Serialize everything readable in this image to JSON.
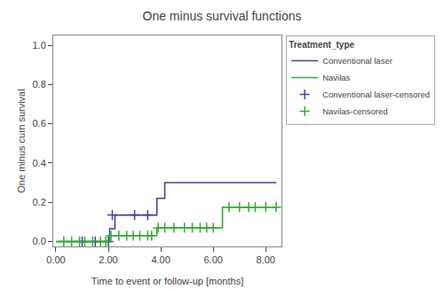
{
  "chart_data": {
    "type": "line",
    "title": "One minus survival functions",
    "xlabel": "Time to event or follow-up [months]",
    "ylabel": "One minus cum survival",
    "legend_title": "Treatment_type",
    "legend": "right",
    "grid": false,
    "xlim": [
      -0.1,
      8.6
    ],
    "ylim": [
      -0.025,
      1.05
    ],
    "xticks": [
      {
        "value": 0.0,
        "label": "0.00"
      },
      {
        "value": 2.0,
        "label": "2.00"
      },
      {
        "value": 4.0,
        "label": "4.00"
      },
      {
        "value": 6.0,
        "label": "6.00"
      },
      {
        "value": 8.0,
        "label": "8.00"
      }
    ],
    "yticks": [
      {
        "value": 0.0,
        "label": "0.0"
      },
      0.2,
      0.4,
      0.6,
      0.8,
      {
        "value": 1.0,
        "label": "1.0"
      }
    ],
    "series": [
      {
        "name": "Conventional laser",
        "type": "line",
        "color": "#4040A0",
        "x": [
          0.0,
          2.05,
          2.05,
          2.25,
          2.25,
          3.85,
          3.85,
          4.15,
          4.15,
          4.55,
          4.55,
          8.4
        ],
        "values": [
          0.0,
          0.0,
          0.065,
          0.065,
          0.135,
          0.135,
          0.22,
          0.22,
          0.3,
          0.3,
          0.3,
          0.3
        ]
      },
      {
        "name": "Navilas",
        "type": "line",
        "color": "#33AA33",
        "x": [
          0.0,
          2.05,
          2.05,
          3.85,
          3.85,
          4.05,
          4.05,
          6.35,
          6.35,
          6.55,
          6.55,
          8.4
        ],
        "values": [
          0.0,
          0.0,
          0.03,
          0.03,
          0.07,
          0.07,
          0.07,
          0.07,
          0.175,
          0.175,
          0.175,
          0.175
        ]
      },
      {
        "name": "Conventional laser-censored",
        "type": "scatter",
        "marker": "plus",
        "color": "#4040A0",
        "x": [
          1.0,
          1.5,
          2.0,
          2.15,
          3.0,
          3.5
        ],
        "values": [
          0.0,
          0.0,
          0.0,
          0.135,
          0.135,
          0.135
        ]
      },
      {
        "name": "Navilas-censored",
        "type": "scatter",
        "marker": "plus",
        "color": "#33AA33",
        "x": [
          0.3,
          0.6,
          0.9,
          1.1,
          1.4,
          1.7,
          1.9,
          2.1,
          2.4,
          2.7,
          2.95,
          3.2,
          3.5,
          3.65,
          3.9,
          4.15,
          4.5,
          4.9,
          5.2,
          5.5,
          5.75,
          6.0,
          6.6,
          7.0,
          7.35,
          7.6,
          8.0,
          8.4
        ],
        "values": [
          0.0,
          0.0,
          0.0,
          0.0,
          0.0,
          0.0,
          0.0,
          0.03,
          0.03,
          0.03,
          0.03,
          0.03,
          0.03,
          0.03,
          0.07,
          0.07,
          0.07,
          0.07,
          0.07,
          0.07,
          0.07,
          0.07,
          0.175,
          0.175,
          0.175,
          0.175,
          0.175,
          0.175
        ]
      }
    ]
  }
}
